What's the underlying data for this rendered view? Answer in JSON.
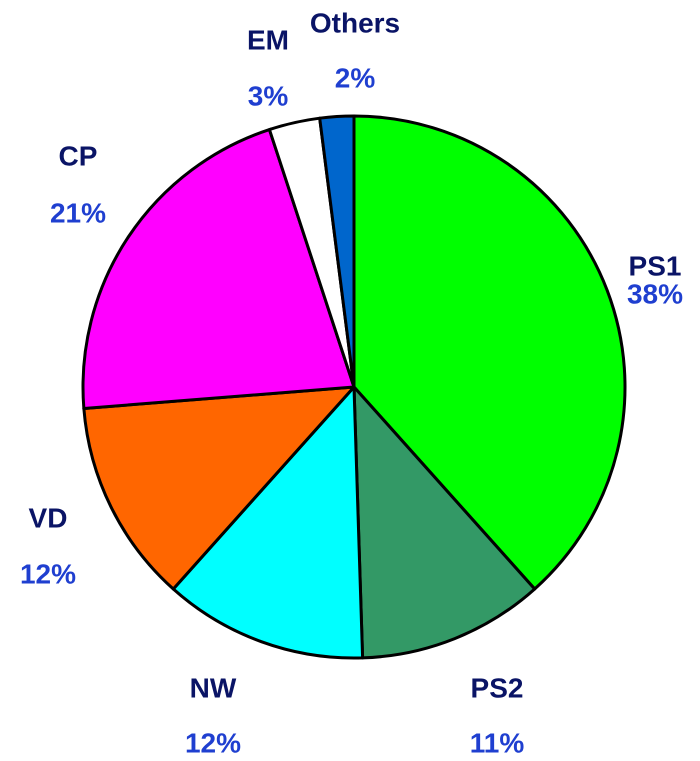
{
  "chart_data": {
    "type": "pie",
    "categories": [
      "PS1",
      "PS2",
      "NW",
      "VD",
      "CP",
      "EM",
      "Others"
    ],
    "values": [
      38,
      11,
      12,
      12,
      21,
      3,
      2
    ],
    "value_labels": [
      "38%",
      "11%",
      "12%",
      "12%",
      "21%",
      "3%",
      "2%"
    ],
    "colors": [
      "#00ff00",
      "#339966",
      "#00ffff",
      "#ff6600",
      "#ff00ff",
      "#ffffff",
      "#0066cc"
    ]
  }
}
